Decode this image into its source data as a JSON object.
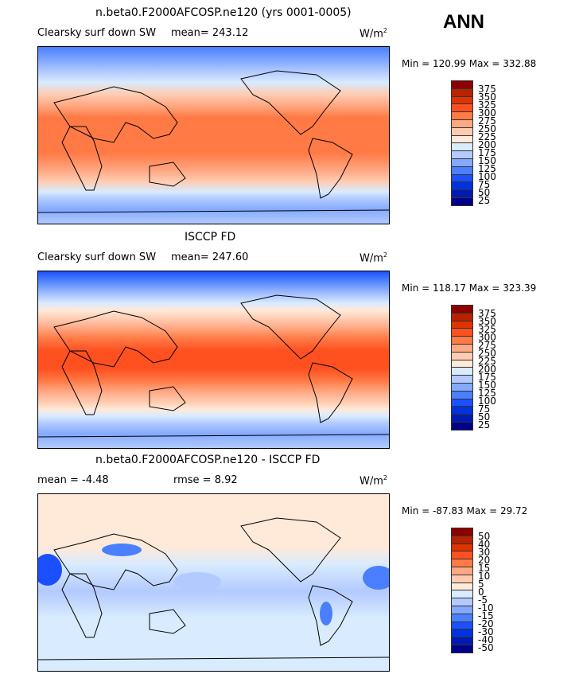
{
  "header": {
    "title": "ANN"
  },
  "chart_data": [
    {
      "type": "heatmap",
      "title": "n.beta0.F2000AFCOSP.ne120 (yrs 0001-0005)",
      "subtitle": "Clearsky surf down SW",
      "mean_label": "mean= 243.12",
      "units": "W/m",
      "units_sup": "2",
      "minmax": "Min = 120.99 Max = 332.88",
      "levels": [
        "375",
        "350",
        "325",
        "300",
        "275",
        "250",
        "225",
        "200",
        "175",
        "150",
        "125",
        "100",
        "75",
        "50",
        "25"
      ]
    },
    {
      "type": "heatmap",
      "title": "ISCCP FD",
      "subtitle": "Clearsky surf down SW",
      "mean_label": "mean= 247.60",
      "units": "W/m",
      "units_sup": "2",
      "minmax": "Min = 118.17 Max = 323.39",
      "levels": [
        "375",
        "350",
        "325",
        "300",
        "275",
        "250",
        "225",
        "200",
        "175",
        "150",
        "125",
        "100",
        "75",
        "50",
        "25"
      ]
    },
    {
      "type": "heatmap",
      "title": "n.beta0.F2000AFCOSP.ne120 - ISCCP FD",
      "subtitle": "mean =   -4.48",
      "mean_label": "rmse =    8.92",
      "units": "W/m",
      "units_sup": "2",
      "minmax": "Min = -87.83 Max =   29.72",
      "levels": [
        "50",
        "40",
        "30",
        "20",
        "15",
        "10",
        "5",
        "0",
        "-5",
        "-10",
        "-15",
        "-20",
        "-30",
        "-40",
        "-50"
      ]
    }
  ],
  "colors": [
    "#8c0000",
    "#b82200",
    "#e03300",
    "#ff5020",
    "#ff7a45",
    "#ffa884",
    "#ffcbb0",
    "#ffe9d9",
    "#d8ebff",
    "#b2caff",
    "#84a9ff",
    "#4a80ff",
    "#1c50ff",
    "#0033e0",
    "#001ab2",
    "#000088"
  ]
}
